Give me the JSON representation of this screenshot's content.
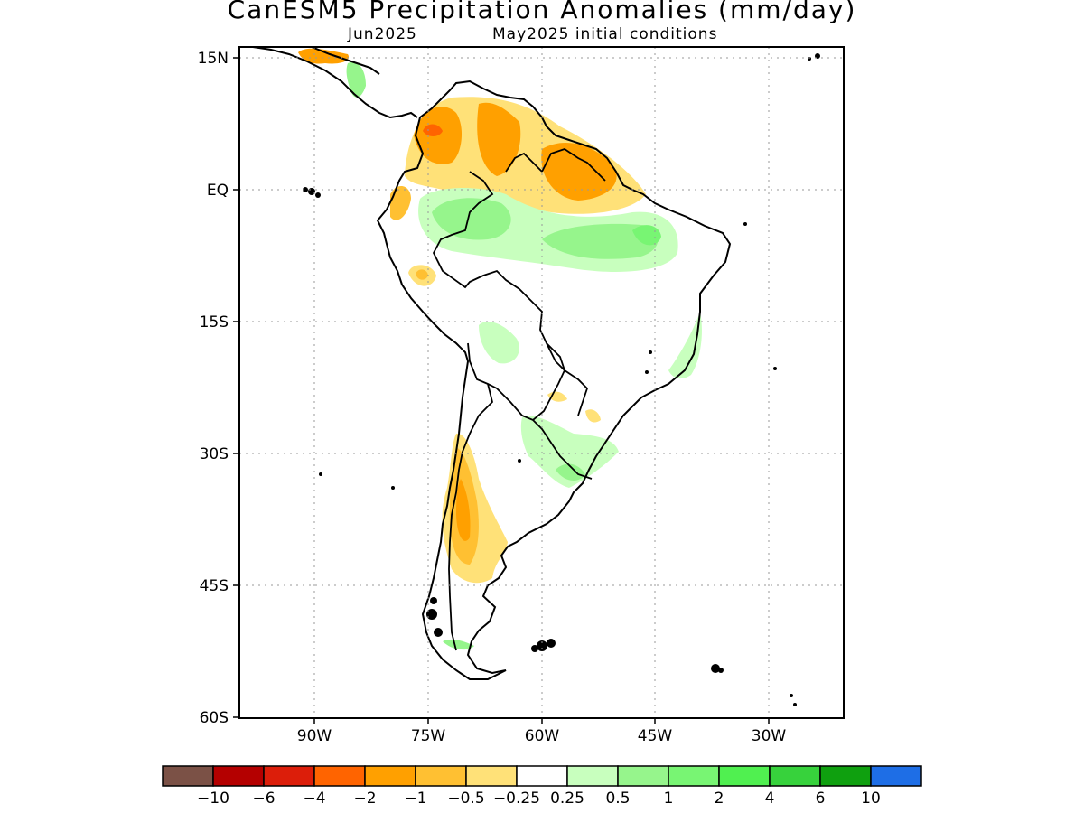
{
  "title": "CanESM5 Precipitation Anomalies (mm/day)",
  "subtitle_left": "Jun2025",
  "subtitle_right": "May2025 initial conditions",
  "lat_labels": [
    "15N",
    "EQ",
    "15S",
    "30S",
    "45S",
    "60S"
  ],
  "lon_labels": [
    "90W",
    "75W",
    "60W",
    "45W",
    "30W"
  ],
  "legend": {
    "labels": [
      "-10",
      "-6",
      "-4",
      "-2",
      "-1",
      "-0.5",
      "-0.25",
      "0.25",
      "0.5",
      "1",
      "2",
      "4",
      "6",
      "10"
    ],
    "colors": [
      "#7b5146",
      "#b40000",
      "#dc1e0a",
      "#ff6400",
      "#ffa000",
      "#ffc032",
      "#ffe178",
      "#ffffff",
      "#c8ffbe",
      "#96f58c",
      "#78f573",
      "#50f050",
      "#37d23c",
      "#0fa00f",
      "#1e6ee6"
    ]
  }
}
